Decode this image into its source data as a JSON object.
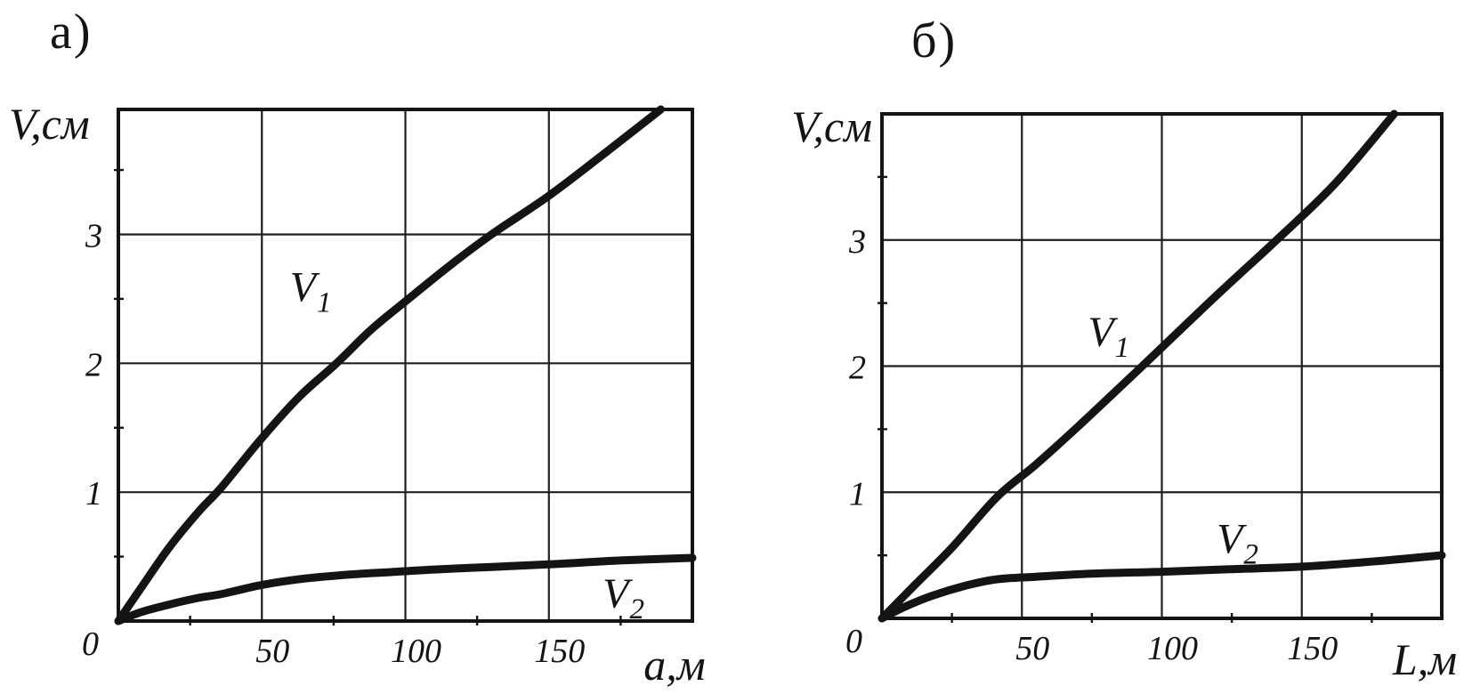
{
  "figure": {
    "background": "#ffffff",
    "ink_color": "#141414",
    "grid_color": "#1f1f1f"
  },
  "chart_data": [
    {
      "id": "a",
      "type": "line",
      "panel_label": "а)",
      "title": "",
      "xlabel": "а,м",
      "ylabel": "V,см",
      "xlim": [
        0,
        200
      ],
      "ylim": [
        0,
        3.97
      ],
      "x_ticks": [
        50,
        100,
        150
      ],
      "y_ticks": [
        1,
        2,
        3
      ],
      "origin_tick": "0",
      "minor_x_ticks": [
        25,
        75,
        125,
        175
      ],
      "minor_y_ticks": [
        0.5,
        1.5,
        2.5,
        3.5
      ],
      "grid": true,
      "legend_position": "none",
      "series": [
        {
          "name": "V1",
          "label_main": "V",
          "label_sub": "1",
          "label_at": [
            67,
            2.6
          ],
          "points": [
            [
              0,
              0
            ],
            [
              8,
              0.26
            ],
            [
              18,
              0.58
            ],
            [
              28,
              0.85
            ],
            [
              36,
              1.04
            ],
            [
              50,
              1.42
            ],
            [
              63,
              1.74
            ],
            [
              76,
              2.0
            ],
            [
              88,
              2.26
            ],
            [
              100,
              2.48
            ],
            [
              115,
              2.75
            ],
            [
              130,
              3.0
            ],
            [
              150,
              3.3
            ],
            [
              170,
              3.64
            ],
            [
              189,
              3.97
            ]
          ]
        },
        {
          "name": "V2",
          "label_main": "V",
          "label_sub": "2",
          "label_at": [
            176,
            0.22
          ],
          "points": [
            [
              0,
              0
            ],
            [
              8,
              0.07
            ],
            [
              18,
              0.13
            ],
            [
              28,
              0.18
            ],
            [
              36,
              0.21
            ],
            [
              50,
              0.28
            ],
            [
              65,
              0.33
            ],
            [
              80,
              0.36
            ],
            [
              95,
              0.38
            ],
            [
              110,
              0.4
            ],
            [
              130,
              0.42
            ],
            [
              150,
              0.44
            ],
            [
              175,
              0.47
            ],
            [
              200,
              0.49
            ]
          ]
        }
      ]
    },
    {
      "id": "b",
      "type": "line",
      "panel_label": "б)",
      "title": "",
      "xlabel": "L,м",
      "ylabel": "V,см",
      "xlim": [
        0,
        200
      ],
      "ylim": [
        0,
        4.0
      ],
      "x_ticks": [
        50,
        100,
        150
      ],
      "y_ticks": [
        1,
        2,
        3
      ],
      "origin_tick": "0",
      "minor_x_ticks": [
        25,
        75,
        125,
        175
      ],
      "minor_y_ticks": [
        0.5,
        1.5,
        2.5,
        3.5
      ],
      "grid": true,
      "legend_position": "none",
      "series": [
        {
          "name": "V1",
          "label_main": "V",
          "label_sub": "1",
          "label_at": [
            81,
            2.28
          ],
          "points": [
            [
              0,
              0
            ],
            [
              12,
              0.27
            ],
            [
              25,
              0.56
            ],
            [
              41,
              0.96
            ],
            [
              55,
              1.22
            ],
            [
              70,
              1.52
            ],
            [
              93,
              2.0
            ],
            [
              120,
              2.57
            ],
            [
              141,
              3.0
            ],
            [
              162,
              3.45
            ],
            [
              183,
              4.0
            ]
          ]
        },
        {
          "name": "V2",
          "label_main": "V",
          "label_sub": "2",
          "label_at": [
            127,
            0.64
          ],
          "points": [
            [
              0,
              0
            ],
            [
              8,
              0.09
            ],
            [
              18,
              0.18
            ],
            [
              30,
              0.26
            ],
            [
              41,
              0.31
            ],
            [
              55,
              0.33
            ],
            [
              75,
              0.355
            ],
            [
              100,
              0.37
            ],
            [
              125,
              0.39
            ],
            [
              150,
              0.41
            ],
            [
              175,
              0.45
            ],
            [
              200,
              0.5
            ]
          ]
        }
      ]
    }
  ]
}
